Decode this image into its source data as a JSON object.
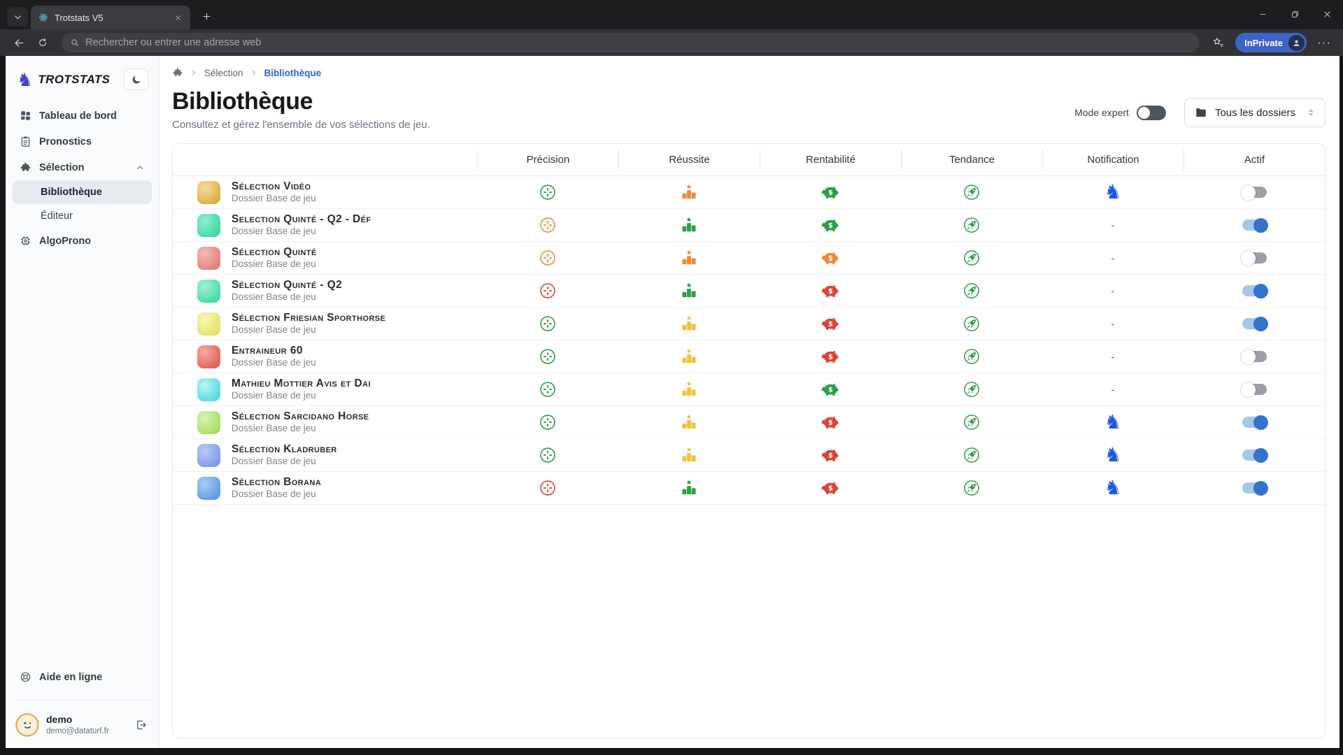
{
  "browser": {
    "tab_title": "Trotstats V5",
    "url_placeholder": "Rechercher ou entrer une adresse web",
    "inprivate_label": "InPrivate"
  },
  "sidebar": {
    "brand": "TROTSTATS",
    "items": [
      {
        "label": "Tableau de bord"
      },
      {
        "label": "Pronostics"
      },
      {
        "label": "Sélection"
      },
      {
        "label": "Bibliothèque"
      },
      {
        "label": "Éditeur"
      },
      {
        "label": "AlgoProno"
      }
    ],
    "help": "Aide en ligne",
    "user": {
      "name": "demo",
      "email": "demo@dataturf.fr"
    }
  },
  "breadcrumb": {
    "level1": "Sélection",
    "level2": "Bibliothèque"
  },
  "page": {
    "title": "Bibliothèque",
    "subtitle": "Consultez et gérez l'ensemble de vos sélections de jeu.",
    "mode_expert_label": "Mode expert",
    "folder_filter": "Tous les dossiers"
  },
  "table": {
    "columns": [
      "Précision",
      "Réussite",
      "Rentabilité",
      "Tendance",
      "Notification",
      "Actif"
    ],
    "rows": [
      {
        "name": "Sélection Vidéo",
        "folder": "Dossier Base de jeu",
        "thumb": [
          "#f3dda2",
          "#e0ad45"
        ],
        "precision": "green",
        "reussite": "orange",
        "rentabilite": "green",
        "tendance": "green",
        "notification": "knight",
        "actif": false
      },
      {
        "name": "Selection Quinté - Q2 - Déf",
        "folder": "Dossier Base de jeu",
        "thumb": [
          "#8ff0cd",
          "#40d9a1"
        ],
        "precision": "orange",
        "reussite": "green",
        "rentabilite": "green",
        "tendance": "green",
        "notification": "none",
        "actif": true
      },
      {
        "name": "Sélection Quinté",
        "folder": "Dossier Base de jeu",
        "thumb": [
          "#f5bcb7",
          "#e0827b"
        ],
        "precision": "orange",
        "reussite": "orange",
        "rentabilite": "orange",
        "tendance": "green",
        "notification": "none",
        "actif": false
      },
      {
        "name": "Sélection Quinté - Q2",
        "folder": "Dossier Base de jeu",
        "thumb": [
          "#a6f1d2",
          "#45dca4"
        ],
        "precision": "red",
        "reussite": "green",
        "rentabilite": "red",
        "tendance": "green",
        "notification": "none",
        "actif": true
      },
      {
        "name": "Sélection Friesian Sporthorse",
        "folder": "Dossier Base de jeu",
        "thumb": [
          "#f7f7b5",
          "#e4e468"
        ],
        "precision": "green",
        "reussite": "amber",
        "rentabilite": "red",
        "tendance": "green",
        "notification": "none",
        "actif": true
      },
      {
        "name": "Entraineur 60",
        "folder": "Dossier Base de jeu",
        "thumb": [
          "#f5a9a3",
          "#e2625a"
        ],
        "precision": "green",
        "reussite": "amber",
        "rentabilite": "red",
        "tendance": "green",
        "notification": "none",
        "actif": false
      },
      {
        "name": "Mathieu Mottier Avis et Dai",
        "folder": "Dossier Base de jeu",
        "thumb": [
          "#baf5f5",
          "#55dbe2"
        ],
        "precision": "green",
        "reussite": "amber",
        "rentabilite": "green",
        "tendance": "green",
        "notification": "none",
        "actif": false
      },
      {
        "name": "Sélection Sarcidano Horse",
        "folder": "Dossier Base de jeu",
        "thumb": [
          "#daf3b2",
          "#a8de62"
        ],
        "precision": "green",
        "reussite": "amber",
        "rentabilite": "red",
        "tendance": "green",
        "notification": "knight",
        "actif": true
      },
      {
        "name": "Sélection Kladruber",
        "folder": "Dossier Base de jeu",
        "thumb": [
          "#bcc9f5",
          "#809be8"
        ],
        "precision": "green",
        "reussite": "amber",
        "rentabilite": "red",
        "tendance": "green",
        "notification": "knight",
        "actif": true
      },
      {
        "name": "Sélection Borana",
        "folder": "Dossier Base de jeu",
        "thumb": [
          "#abccf3",
          "#609bdf"
        ],
        "precision": "red",
        "reussite": "green",
        "rentabilite": "red",
        "tendance": "green",
        "notification": "knight",
        "actif": true
      }
    ]
  },
  "colors": {
    "green": "#2f9e44",
    "orange": "#f08a3d",
    "amber": "#f2c23e",
    "red": "#d9453a",
    "blue": "#1e56e8"
  }
}
